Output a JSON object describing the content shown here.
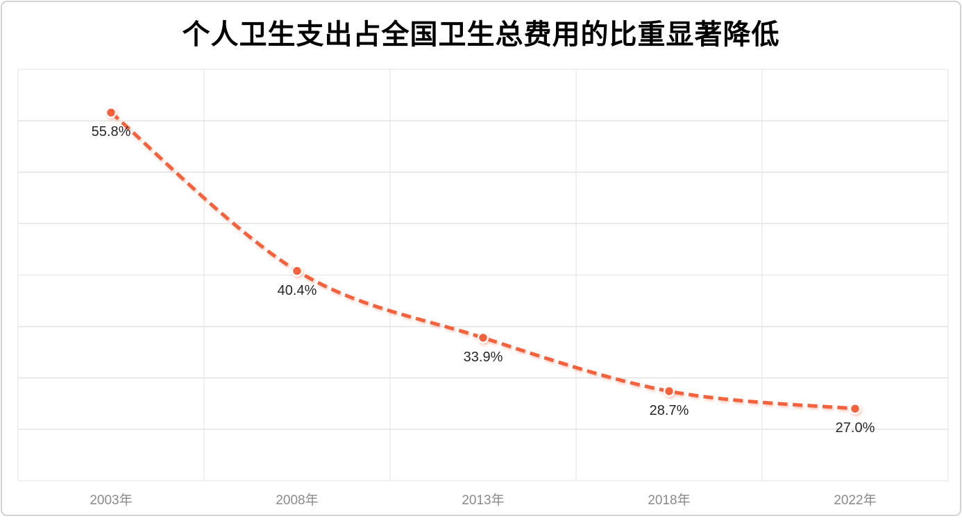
{
  "chart_data": {
    "type": "line",
    "title": "个人卫生支出占全国卫生总费用的比重显著降低",
    "categories": [
      "2003年",
      "2008年",
      "2013年",
      "2018年",
      "2022年"
    ],
    "values": [
      55.8,
      40.4,
      33.9,
      28.7,
      27.0
    ],
    "data_labels": [
      "55.8%",
      "40.4%",
      "33.9%",
      "28.7%",
      "27.0%"
    ],
    "axis": {
      "y_min": 20,
      "y_max": 60,
      "y_step": 5,
      "y_tick_labels_visible": false,
      "grid": true,
      "legend": "none"
    },
    "style": {
      "line_style": "dashed",
      "smooth": true,
      "line_color": "#F4623C",
      "marker_fill": "#F4623C",
      "marker_ring": "#FFFFFF",
      "grid_color": "#E3E3E3",
      "data_label_color": "#262626",
      "tick_label_color": "#8A8A8A",
      "title_color": "#000000",
      "frame_border_color": "#D2D2D2",
      "background": "#FFFFFF"
    }
  }
}
